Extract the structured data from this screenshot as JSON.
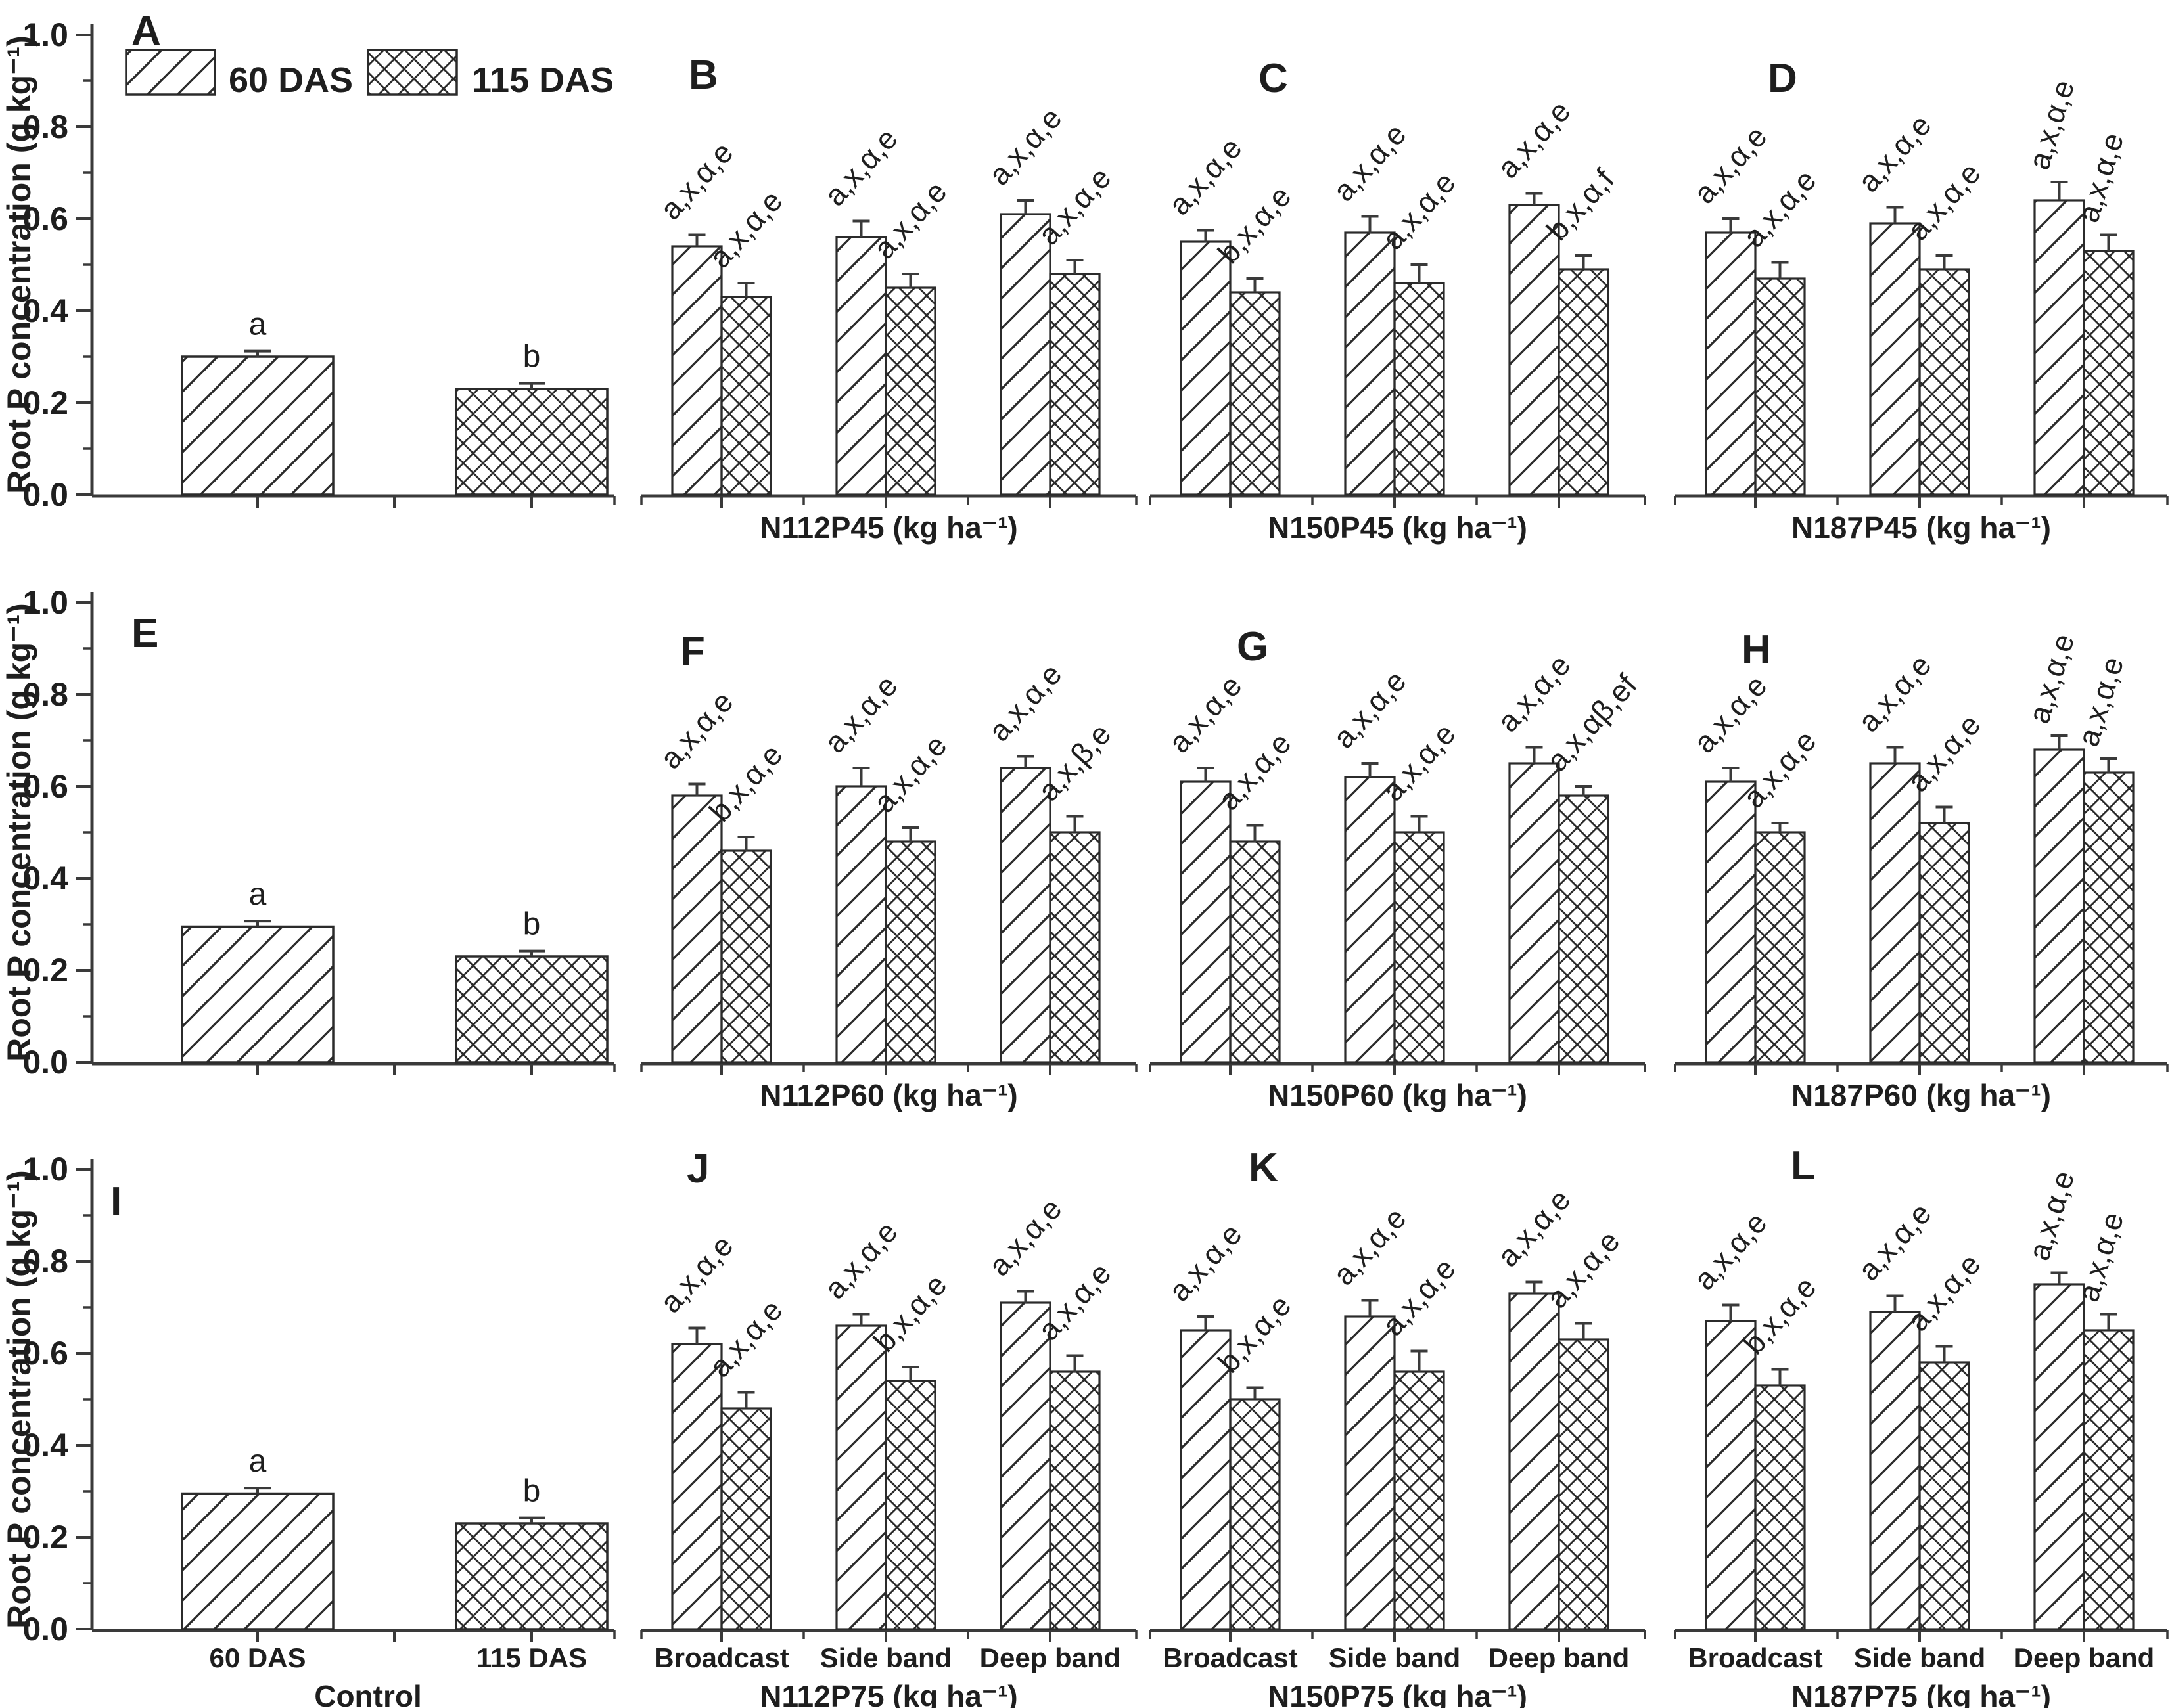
{
  "figure": {
    "legend": [
      {
        "label": "60 DAS",
        "pattern": "diagonal-hatch"
      },
      {
        "label": "115 DAS",
        "pattern": "cross-hatch"
      }
    ],
    "colors": {
      "ink": "#1e1e1e",
      "axis": "#3a3a3a",
      "background": "#ffffff"
    }
  },
  "chart_data": {
    "type": "bar",
    "series": [
      "60 DAS",
      "115 DAS"
    ],
    "y_axis": {
      "title": "Root P concentration (g kg⁻¹)",
      "min": 0,
      "max": 1,
      "tick_labels": [
        "1.0",
        "0.8",
        "0.6",
        "0.4",
        "0.2",
        "0.0"
      ],
      "minor_ticks": [
        0.1,
        0.3,
        0.5,
        0.7,
        0.9
      ]
    },
    "rows": [
      {
        "panels": [
          {
            "letter": "A",
            "kind": "control",
            "title": "Control",
            "categories": [
              "60 DAS",
              "115 DAS"
            ],
            "bars": [
              {
                "value": 0.3,
                "err": 0.012,
                "note": "a"
              },
              {
                "value": 0.23,
                "err": 0.012,
                "note": "b"
              }
            ]
          },
          {
            "letter": "B",
            "kind": "treatment",
            "title": "N112P45 (kg ha⁻¹)",
            "categories": [
              "Broadcast",
              "Side band",
              "Deep band"
            ],
            "groups": [
              [
                {
                  "value": 0.54,
                  "err": 0.025,
                  "note": "a,x,α,e"
                },
                {
                  "value": 0.43,
                  "err": 0.03,
                  "note": "a,x,α,e"
                }
              ],
              [
                {
                  "value": 0.56,
                  "err": 0.035,
                  "note": "a,x,α,e"
                },
                {
                  "value": 0.45,
                  "err": 0.03,
                  "note": "a,x,α,e"
                }
              ],
              [
                {
                  "value": 0.61,
                  "err": 0.03,
                  "note": "a,x,α,e"
                },
                {
                  "value": 0.48,
                  "err": 0.03,
                  "note": "a,x,α,e"
                }
              ]
            ]
          },
          {
            "letter": "C",
            "kind": "treatment",
            "title": "N150P45 (kg ha⁻¹)",
            "categories": [
              "Broadcast",
              "Side band",
              "Deep band"
            ],
            "groups": [
              [
                {
                  "value": 0.55,
                  "err": 0.025,
                  "note": "a,x,α,e"
                },
                {
                  "value": 0.44,
                  "err": 0.03,
                  "note": "b,x,α,e"
                }
              ],
              [
                {
                  "value": 0.57,
                  "err": 0.035,
                  "note": "a,x,α,e"
                },
                {
                  "value": 0.46,
                  "err": 0.04,
                  "note": "a,x,α,e"
                }
              ],
              [
                {
                  "value": 0.63,
                  "err": 0.025,
                  "note": "a,x,α,e"
                },
                {
                  "value": 0.49,
                  "err": 0.03,
                  "note": "b,x,α,f"
                }
              ]
            ]
          },
          {
            "letter": "D",
            "kind": "treatment",
            "title": "N187P45 (kg ha⁻¹)",
            "categories": [
              "Broadcast",
              "Side band",
              "Deep band"
            ],
            "groups": [
              [
                {
                  "value": 0.57,
                  "err": 0.03,
                  "note": "a,x,α,e"
                },
                {
                  "value": 0.47,
                  "err": 0.035,
                  "note": "a,x,α,e"
                }
              ],
              [
                {
                  "value": 0.59,
                  "err": 0.035,
                  "note": "a,x,α,e"
                },
                {
                  "value": 0.49,
                  "err": 0.03,
                  "note": "a,x,α,e"
                }
              ],
              [
                {
                  "value": 0.64,
                  "err": 0.04,
                  "note": "a,x,α,e",
                  "steep": true
                },
                {
                  "value": 0.53,
                  "err": 0.035,
                  "note": "a,x,α,e",
                  "steep": true
                }
              ]
            ]
          }
        ]
      },
      {
        "panels": [
          {
            "letter": "E",
            "kind": "control",
            "title": "Control",
            "categories": [
              "60 DAS",
              "115 DAS"
            ],
            "bars": [
              {
                "value": 0.295,
                "err": 0.012,
                "note": "a"
              },
              {
                "value": 0.23,
                "err": 0.012,
                "note": "b"
              }
            ]
          },
          {
            "letter": "F",
            "kind": "treatment",
            "title": "N112P60 (kg ha⁻¹)",
            "categories": [
              "Broadcast",
              "Side band",
              "Deep band"
            ],
            "groups": [
              [
                {
                  "value": 0.58,
                  "err": 0.025,
                  "note": "a,x,α,e"
                },
                {
                  "value": 0.46,
                  "err": 0.03,
                  "note": "b,x,α,e"
                }
              ],
              [
                {
                  "value": 0.6,
                  "err": 0.04,
                  "note": "a,x,α,e"
                },
                {
                  "value": 0.48,
                  "err": 0.03,
                  "note": "a,x,α,e"
                }
              ],
              [
                {
                  "value": 0.64,
                  "err": 0.025,
                  "note": "a,x,α,e"
                },
                {
                  "value": 0.5,
                  "err": 0.035,
                  "note": "a,x,β,e"
                }
              ]
            ]
          },
          {
            "letter": "G",
            "kind": "treatment",
            "title": "N150P60 (kg ha⁻¹)",
            "categories": [
              "Broadcast",
              "Side band",
              "Deep band"
            ],
            "groups": [
              [
                {
                  "value": 0.61,
                  "err": 0.03,
                  "note": "a,x,α,e"
                },
                {
                  "value": 0.48,
                  "err": 0.035,
                  "note": "a,x,α,e"
                }
              ],
              [
                {
                  "value": 0.62,
                  "err": 0.03,
                  "note": "a,x,α,e"
                },
                {
                  "value": 0.5,
                  "err": 0.035,
                  "note": "a,x,α,e"
                }
              ],
              [
                {
                  "value": 0.65,
                  "err": 0.035,
                  "note": "a,x,α,e"
                },
                {
                  "value": 0.58,
                  "err": 0.02,
                  "note": "a,x,αβ,ef"
                }
              ]
            ]
          },
          {
            "letter": "H",
            "kind": "treatment",
            "title": "N187P60 (kg ha⁻¹)",
            "categories": [
              "Broadcast",
              "Side band",
              "Deep band"
            ],
            "groups": [
              [
                {
                  "value": 0.61,
                  "err": 0.03,
                  "note": "a,x,α,e"
                },
                {
                  "value": 0.5,
                  "err": 0.02,
                  "note": "a,x,α,e"
                }
              ],
              [
                {
                  "value": 0.65,
                  "err": 0.035,
                  "note": "a,x,α,e"
                },
                {
                  "value": 0.52,
                  "err": 0.035,
                  "note": "a,x,α,e"
                }
              ],
              [
                {
                  "value": 0.68,
                  "err": 0.03,
                  "note": "a,x,α,e",
                  "steep": true
                },
                {
                  "value": 0.63,
                  "err": 0.03,
                  "note": "a,x,α,e",
                  "steep": true
                }
              ]
            ]
          }
        ]
      },
      {
        "panels": [
          {
            "letter": "I",
            "kind": "control",
            "title": "Control",
            "categories": [
              "60 DAS",
              "115 DAS"
            ],
            "bars": [
              {
                "value": 0.295,
                "err": 0.012,
                "note": "a"
              },
              {
                "value": 0.23,
                "err": 0.012,
                "note": "b"
              }
            ]
          },
          {
            "letter": "J",
            "kind": "treatment",
            "title": "N112P75 (kg ha⁻¹)",
            "categories": [
              "Broadcast",
              "Side band",
              "Deep band"
            ],
            "groups": [
              [
                {
                  "value": 0.62,
                  "err": 0.035,
                  "note": "a,x,α,e"
                },
                {
                  "value": 0.48,
                  "err": 0.035,
                  "note": "a,x,α,e"
                }
              ],
              [
                {
                  "value": 0.66,
                  "err": 0.025,
                  "note": "a,x,α,e"
                },
                {
                  "value": 0.54,
                  "err": 0.03,
                  "note": "b,x,α,e"
                }
              ],
              [
                {
                  "value": 0.71,
                  "err": 0.025,
                  "note": "a,x,α,e"
                },
                {
                  "value": 0.56,
                  "err": 0.035,
                  "note": "a,x,α,e"
                }
              ]
            ]
          },
          {
            "letter": "K",
            "kind": "treatment",
            "title": "N150P75 (kg ha⁻¹)",
            "categories": [
              "Broadcast",
              "Side band",
              "Deep band"
            ],
            "groups": [
              [
                {
                  "value": 0.65,
                  "err": 0.03,
                  "note": "a,x,α,e"
                },
                {
                  "value": 0.5,
                  "err": 0.025,
                  "note": "b,x,α,e"
                }
              ],
              [
                {
                  "value": 0.68,
                  "err": 0.035,
                  "note": "a,x,α,e"
                },
                {
                  "value": 0.56,
                  "err": 0.045,
                  "note": "a,x,α,e"
                }
              ],
              [
                {
                  "value": 0.73,
                  "err": 0.025,
                  "note": "a,x,α,e"
                },
                {
                  "value": 0.63,
                  "err": 0.035,
                  "note": "a,x,α,e"
                }
              ]
            ]
          },
          {
            "letter": "L",
            "kind": "treatment",
            "title": "N187P75 (kg ha⁻¹)",
            "categories": [
              "Broadcast",
              "Side band",
              "Deep band"
            ],
            "groups": [
              [
                {
                  "value": 0.67,
                  "err": 0.035,
                  "note": "a,x,α,e"
                },
                {
                  "value": 0.53,
                  "err": 0.035,
                  "note": "b,x,α,e"
                }
              ],
              [
                {
                  "value": 0.69,
                  "err": 0.035,
                  "note": "a,x,α,e"
                },
                {
                  "value": 0.58,
                  "err": 0.035,
                  "note": "a,x,α,e"
                }
              ],
              [
                {
                  "value": 0.75,
                  "err": 0.025,
                  "note": "a,x,α,e",
                  "steep": true
                },
                {
                  "value": 0.65,
                  "err": 0.035,
                  "note": "a,x,α,e",
                  "steep": true
                }
              ]
            ]
          }
        ]
      }
    ]
  }
}
